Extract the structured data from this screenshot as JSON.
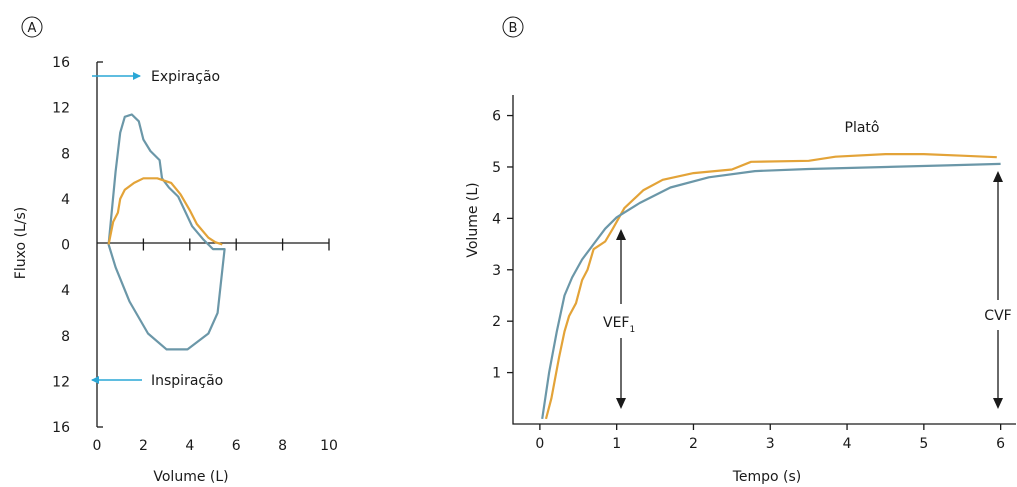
{
  "chart_data": [
    {
      "panel": "A",
      "type": "line",
      "xlabel": "Volume (L)",
      "ylabel": "Fluxo (L/s)",
      "xlim": [
        0,
        10
      ],
      "ylim": [
        -16,
        16
      ],
      "x_ticks": [
        "0",
        "2",
        "4",
        "6",
        "8",
        "10"
      ],
      "y_ticks_up": [
        "0",
        "4",
        "8",
        "12",
        "16"
      ],
      "y_ticks_down": [
        "4",
        "8",
        "12",
        "16"
      ],
      "annotations": {
        "expiration": "Expiração",
        "inspiration": "Inspiração"
      },
      "colors": {
        "blue": "#6b97a8",
        "orange": "#e3a338",
        "arrow": "#2aa7d6"
      },
      "series": [
        {
          "color": "blue",
          "points": [
            [
              0.5,
              0
            ],
            [
              0.8,
              6.4
            ],
            [
              1.0,
              9.8
            ],
            [
              1.2,
              11.2
            ],
            [
              1.5,
              11.4
            ],
            [
              1.8,
              10.8
            ],
            [
              2.0,
              9.2
            ],
            [
              2.3,
              8.2
            ],
            [
              2.7,
              7.4
            ],
            [
              2.8,
              5.8
            ],
            [
              3.1,
              5.0
            ],
            [
              3.5,
              4.2
            ],
            [
              4.1,
              1.6
            ],
            [
              4.6,
              0.4
            ],
            [
              5.0,
              -0.4
            ],
            [
              5.5,
              -0.4
            ],
            [
              5.2,
              -6.0
            ],
            [
              4.8,
              -7.8
            ],
            [
              3.9,
              -9.2
            ],
            [
              3.0,
              -9.2
            ],
            [
              2.2,
              -7.8
            ],
            [
              1.4,
              -5.0
            ],
            [
              0.8,
              -2.0
            ],
            [
              0.5,
              0
            ]
          ]
        },
        {
          "color": "orange",
          "points": [
            [
              0.5,
              0
            ],
            [
              0.7,
              2.0
            ],
            [
              0.9,
              2.8
            ],
            [
              1.0,
              4.0
            ],
            [
              1.2,
              4.8
            ],
            [
              1.6,
              5.4
            ],
            [
              2.0,
              5.8
            ],
            [
              2.6,
              5.8
            ],
            [
              3.2,
              5.4
            ],
            [
              3.6,
              4.4
            ],
            [
              4.0,
              3.0
            ],
            [
              4.3,
              1.8
            ],
            [
              4.8,
              0.6
            ],
            [
              5.1,
              0.2
            ],
            [
              5.4,
              0
            ]
          ]
        }
      ]
    },
    {
      "panel": "B",
      "type": "line",
      "xlabel": "Tempo (s)",
      "ylabel": "Volume (L)",
      "xlim": [
        -0.35,
        6.2
      ],
      "ylim": [
        0,
        6.4
      ],
      "x_ticks": [
        "0",
        "1",
        "2",
        "3",
        "4",
        "5",
        "6"
      ],
      "y_ticks": [
        "1",
        "2",
        "3",
        "4",
        "5",
        "6"
      ],
      "annotations": {
        "plateau": "Platô",
        "fev1": "VEF",
        "fev1_sub": "1",
        "fvc": "CVF"
      },
      "colors": {
        "blue": "#6b97a8",
        "orange": "#e3a338"
      },
      "series": [
        {
          "color": "blue",
          "points": [
            [
              0.03,
              0.1
            ],
            [
              0.12,
              1.0
            ],
            [
              0.22,
              1.8
            ],
            [
              0.32,
              2.5
            ],
            [
              0.42,
              2.85
            ],
            [
              0.55,
              3.2
            ],
            [
              0.7,
              3.5
            ],
            [
              0.85,
              3.8
            ],
            [
              1.0,
              4.02
            ],
            [
              1.3,
              4.3
            ],
            [
              1.7,
              4.6
            ],
            [
              2.2,
              4.8
            ],
            [
              2.8,
              4.92
            ],
            [
              3.5,
              4.96
            ],
            [
              4.5,
              5.0
            ],
            [
              5.3,
              5.03
            ],
            [
              6.0,
              5.06
            ]
          ]
        },
        {
          "color": "orange",
          "points": [
            [
              0.08,
              0.1
            ],
            [
              0.15,
              0.5
            ],
            [
              0.25,
              1.3
            ],
            [
              0.32,
              1.8
            ],
            [
              0.38,
              2.1
            ],
            [
              0.47,
              2.35
            ],
            [
              0.55,
              2.8
            ],
            [
              0.62,
              3.0
            ],
            [
              0.7,
              3.4
            ],
            [
              0.85,
              3.55
            ],
            [
              0.95,
              3.8
            ],
            [
              1.1,
              4.2
            ],
            [
              1.35,
              4.55
            ],
            [
              1.6,
              4.75
            ],
            [
              2.0,
              4.88
            ],
            [
              2.5,
              4.95
            ],
            [
              2.75,
              5.1
            ],
            [
              3.5,
              5.12
            ],
            [
              3.85,
              5.2
            ],
            [
              4.5,
              5.25
            ],
            [
              5.0,
              5.25
            ],
            [
              5.5,
              5.22
            ],
            [
              5.95,
              5.19
            ]
          ]
        }
      ]
    }
  ]
}
